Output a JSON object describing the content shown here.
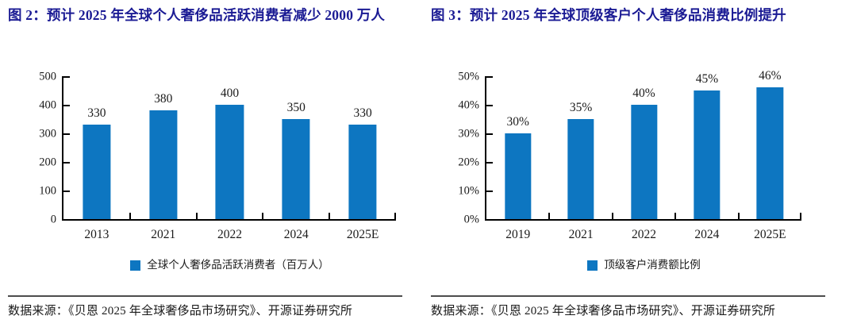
{
  "colors": {
    "bar": "#0d76c1",
    "title_blue": "#1b1b94",
    "axis": "#000000",
    "divider": "#4d4d4d",
    "text": "#1a1a1a"
  },
  "chart_data": [
    {
      "type": "bar",
      "title": "图 2：预计 2025 年全球个人奢侈品活跃消费者减少 2000 万人",
      "categories": [
        "2013",
        "2021",
        "2022",
        "2024",
        "2025E"
      ],
      "values": [
        330,
        380,
        400,
        350,
        330
      ],
      "value_labels": [
        "330",
        "380",
        "400",
        "350",
        "330"
      ],
      "ylim": [
        0,
        500
      ],
      "yticks": [
        0,
        100,
        200,
        300,
        400,
        500
      ],
      "ytick_labels": [
        "0",
        "100",
        "200",
        "300",
        "400",
        "500"
      ],
      "xlabel": "",
      "ylabel": "",
      "grid": false,
      "legend": "全球个人奢侈品活跃消费者（百万人）",
      "legend_position": "bottom",
      "source": "数据来源：《贝恩 2025 年全球奢侈品市场研究》、开源证券研究所"
    },
    {
      "type": "bar",
      "title": "图 3：预计 2025 年全球顶级客户个人奢侈品消费比例提升",
      "categories": [
        "2019",
        "2021",
        "2022",
        "2024",
        "2025E"
      ],
      "values": [
        30,
        35,
        40,
        45,
        46
      ],
      "value_labels": [
        "30%",
        "35%",
        "40%",
        "45%",
        "46%"
      ],
      "ylim": [
        0,
        50
      ],
      "yticks": [
        0,
        10,
        20,
        30,
        40,
        50
      ],
      "ytick_labels": [
        "0%",
        "10%",
        "20%",
        "30%",
        "40%",
        "50%"
      ],
      "xlabel": "",
      "ylabel": "",
      "grid": false,
      "legend": "顶级客户消费额比例",
      "legend_position": "bottom",
      "source": "数据来源：《贝恩 2025 年全球奢侈品市场研究》、开源证券研究所"
    }
  ]
}
